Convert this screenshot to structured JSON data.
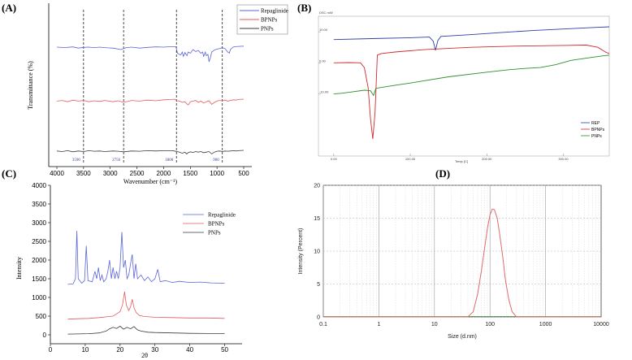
{
  "colors": {
    "blue": "#5b64d6",
    "red": "#e35a5a",
    "black": "#3a3a3a",
    "dsc_blue": "#2f3ea8",
    "dsc_red": "#d02a2a",
    "dsc_green": "#2f8f2f",
    "dls_red": "#e06a6a"
  },
  "chart_data": [
    {
      "type": "line",
      "panel_label": "(A)",
      "xlabel": "Wavenumber (cm⁻¹)",
      "ylabel": "Transmittance (%)",
      "xlim": [
        4000,
        500
      ],
      "x_ticks": [
        "4000",
        "3500",
        "3000",
        "2500",
        "2000",
        "1500",
        "1000",
        "500"
      ],
      "annotations": [
        "3590",
        "2750",
        "1800",
        "900"
      ],
      "annotation_x": [
        3500,
        2750,
        1760,
        900
      ],
      "legend": [
        "Repaglinide",
        "BPNPs",
        "PNPs"
      ],
      "series": [
        {
          "name": "Repaglinide",
          "color": "#5b64d6",
          "offset": 0.8,
          "x": [
            4000,
            3850,
            3700,
            3600,
            3500,
            3400,
            3300,
            3200,
            3050,
            2950,
            2800,
            2700,
            2600,
            2450,
            2300,
            2150,
            2000,
            1850,
            1770,
            1740,
            1700,
            1680,
            1650,
            1630,
            1600,
            1580,
            1560,
            1540,
            1500,
            1450,
            1400,
            1350,
            1300,
            1270,
            1250,
            1220,
            1200,
            1170,
            1150,
            1120,
            1100,
            1050,
            1000,
            950,
            900,
            850,
            800,
            770,
            750,
            700,
            650,
            600,
            500
          ],
          "y": [
            0.8,
            0.78,
            0.81,
            0.76,
            0.79,
            0.8,
            0.78,
            0.8,
            0.77,
            0.76,
            0.7,
            0.78,
            0.8,
            0.76,
            0.79,
            0.81,
            0.8,
            0.82,
            0.82,
            0.55,
            0.5,
            0.48,
            0.6,
            0.42,
            0.58,
            0.5,
            0.45,
            0.6,
            0.55,
            0.7,
            0.62,
            0.66,
            0.55,
            0.6,
            0.42,
            0.6,
            0.45,
            0.5,
            0.2,
            0.4,
            0.6,
            0.68,
            0.72,
            0.74,
            0.78,
            0.74,
            0.6,
            0.55,
            0.7,
            0.8,
            0.82,
            0.83,
            0.84
          ]
        },
        {
          "name": "BPNPs",
          "color": "#e35a5a",
          "offset": 0.0,
          "x": [
            4000,
            3900,
            3800,
            3700,
            3600,
            3500,
            3400,
            3300,
            3200,
            3100,
            2950,
            2850,
            2750,
            2600,
            2450,
            2300,
            2150,
            2000,
            1850,
            1800,
            1750,
            1700,
            1650,
            1600,
            1570,
            1540,
            1500,
            1450,
            1400,
            1350,
            1300,
            1250,
            1200,
            1150,
            1100,
            1050,
            1000,
            950,
            900,
            850,
            800,
            750,
            700,
            650,
            600,
            500
          ],
          "y": [
            0.44,
            0.46,
            0.42,
            0.47,
            0.44,
            0.46,
            0.42,
            0.45,
            0.43,
            0.46,
            0.42,
            0.45,
            0.4,
            0.46,
            0.44,
            0.47,
            0.45,
            0.48,
            0.49,
            0.5,
            0.45,
            0.44,
            0.4,
            0.42,
            0.36,
            0.32,
            0.42,
            0.44,
            0.46,
            0.4,
            0.44,
            0.38,
            0.42,
            0.45,
            0.34,
            0.4,
            0.44,
            0.46,
            0.45,
            0.47,
            0.44,
            0.46,
            0.48,
            0.47,
            0.49,
            0.5
          ]
        },
        {
          "name": "PNPs",
          "color": "#3a3a3a",
          "offset": 0.0,
          "x": [
            4000,
            3900,
            3800,
            3700,
            3600,
            3500,
            3400,
            3300,
            3200,
            3100,
            2950,
            2850,
            2750,
            2600,
            2450,
            2300,
            2150,
            2000,
            1850,
            1800,
            1750,
            1700,
            1650,
            1600,
            1570,
            1540,
            1500,
            1450,
            1400,
            1350,
            1300,
            1250,
            1200,
            1150,
            1100,
            1050,
            1000,
            950,
            900,
            850,
            800,
            750,
            700,
            650,
            600,
            500
          ],
          "y": [
            0.14,
            0.12,
            0.15,
            0.11,
            0.14,
            0.12,
            0.15,
            0.13,
            0.14,
            0.12,
            0.14,
            0.13,
            0.11,
            0.14,
            0.13,
            0.15,
            0.14,
            0.15,
            0.15,
            0.14,
            0.12,
            0.1,
            0.06,
            0.1,
            0.04,
            0.08,
            0.11,
            0.09,
            0.12,
            0.1,
            0.12,
            0.08,
            0.1,
            0.12,
            0.04,
            0.1,
            0.13,
            0.14,
            0.12,
            0.14,
            0.13,
            0.14,
            0.15,
            0.14,
            0.15,
            0.16
          ]
        }
      ]
    },
    {
      "type": "line",
      "panel_label": "(B)",
      "xlabel": "Temp [C]",
      "ylabel": "DSC mW",
      "y_ticks": [
        "10.00",
        "0.00",
        "-10.00"
      ],
      "x_ticks": [
        "0.00",
        "100.00",
        "200.00",
        "300.00"
      ],
      "xlim": [
        -20,
        360
      ],
      "ylim": [
        -30,
        15
      ],
      "legend": [
        "REP",
        "BPNPs",
        "PNPs"
      ],
      "series": [
        {
          "name": "REP",
          "color": "#2f3ea8",
          "x": [
            0,
            50,
            100,
            125,
            130,
            133,
            136,
            140,
            180,
            220,
            260,
            300,
            340,
            360
          ],
          "y": [
            7.5,
            7.8,
            8.1,
            8.3,
            7.0,
            4.0,
            7.2,
            8.5,
            9.1,
            9.8,
            10.4,
            10.9,
            11.4,
            11.6
          ]
        },
        {
          "name": "BPNPs",
          "color": "#d02a2a",
          "x": [
            0,
            20,
            35,
            40,
            45,
            48,
            51,
            54,
            57,
            62,
            80,
            120,
            180,
            240,
            300,
            330,
            345,
            355,
            360
          ],
          "y": [
            0.0,
            0.1,
            0.0,
            -1.5,
            -8.0,
            -18.0,
            -24.5,
            -16.0,
            2.5,
            3.0,
            3.5,
            4.3,
            5.0,
            5.4,
            5.6,
            5.7,
            5.0,
            3.5,
            3.0
          ]
        },
        {
          "name": "PNPs",
          "color": "#2f8f2f",
          "x": [
            0,
            10,
            20,
            40,
            48,
            52,
            55,
            60,
            80,
            100,
            150,
            200,
            230,
            250,
            270,
            290,
            310,
            330,
            350,
            360
          ],
          "y": [
            -10.0,
            -9.8,
            -9.5,
            -8.8,
            -9.0,
            -10.5,
            -8.2,
            -8.0,
            -7.2,
            -6.5,
            -4.5,
            -3.0,
            -2.2,
            -1.8,
            -1.5,
            -0.6,
            0.8,
            1.5,
            2.2,
            2.5
          ]
        }
      ]
    },
    {
      "type": "line",
      "panel_label": "(C)",
      "xlabel": "2θ",
      "ylabel": "Intensity",
      "xlim": [
        0,
        55
      ],
      "ylim": [
        0,
        4000
      ],
      "y_ticks": [
        "0",
        "500",
        "1000",
        "1500",
        "2000",
        "2500",
        "3000",
        "3500",
        "4000"
      ],
      "x_ticks": [
        "0",
        "10",
        "20",
        "30",
        "40",
        "50"
      ],
      "legend": [
        "Repaglinide",
        "BPNPs",
        "PNPs"
      ],
      "series": [
        {
          "name": "Repaglinide",
          "color": "#5b64d6",
          "x": [
            5,
            6.5,
            7.2,
            7.6,
            8.0,
            9.0,
            9.8,
            10.3,
            10.8,
            12,
            12.8,
            13.3,
            13.8,
            14.3,
            14.8,
            15.3,
            16,
            16.5,
            17,
            17.5,
            18,
            18.5,
            19,
            19.5,
            20,
            20.5,
            21,
            21.5,
            22,
            22.5,
            23,
            23.5,
            24,
            24.5,
            25,
            26,
            27,
            28,
            29,
            30,
            30.8,
            31.5,
            33,
            35,
            37,
            40,
            43,
            46,
            50
          ],
          "y": [
            1350,
            1360,
            1500,
            2780,
            1500,
            1380,
            1450,
            2380,
            1450,
            1420,
            1700,
            1500,
            1800,
            1450,
            1600,
            1420,
            1500,
            1700,
            2000,
            1500,
            1800,
            1500,
            1700,
            1500,
            1800,
            2750,
            1800,
            2000,
            1500,
            1600,
            1900,
            2150,
            1500,
            1900,
            1500,
            1600,
            1450,
            1550,
            1420,
            1500,
            1750,
            1420,
            1450,
            1400,
            1430,
            1400,
            1410,
            1390,
            1380
          ]
        },
        {
          "name": "BPNPs",
          "color": "#e35a5a",
          "x": [
            5,
            8,
            11,
            14,
            16,
            18,
            19,
            20,
            20.7,
            21.3,
            21.8,
            22.5,
            23,
            23.5,
            24,
            24.6,
            25.5,
            27,
            30,
            35,
            40,
            45,
            50
          ],
          "y": [
            420,
            430,
            440,
            460,
            480,
            500,
            560,
            620,
            800,
            1150,
            800,
            650,
            750,
            950,
            720,
            600,
            520,
            490,
            470,
            460,
            450,
            450,
            440
          ]
        },
        {
          "name": "PNPs",
          "color": "#3a3a3a",
          "x": [
            5,
            8,
            11,
            14,
            16,
            17,
            18,
            19,
            20,
            21,
            22,
            23,
            24,
            25,
            26,
            28,
            30,
            35,
            40,
            45,
            50
          ],
          "y": [
            20,
            25,
            30,
            50,
            100,
            160,
            200,
            170,
            230,
            150,
            200,
            160,
            220,
            130,
            100,
            70,
            60,
            50,
            40,
            35,
            30
          ]
        }
      ]
    },
    {
      "type": "line",
      "panel_label": "(D)",
      "xlabel": "Size (d.nm)",
      "ylabel": "Intensity (Percent)",
      "xscale": "log",
      "xlim": [
        0.1,
        10000
      ],
      "ylim": [
        0,
        20
      ],
      "x_ticks": [
        "0.1",
        "1",
        "10",
        "100",
        "1000",
        "10000"
      ],
      "y_ticks": [
        "0",
        "5",
        "10",
        "15",
        "20"
      ],
      "grid": true,
      "series": [
        {
          "name": "",
          "color": "#e06a6a",
          "x": [
            0.1,
            40,
            50,
            60,
            70,
            80,
            90,
            100,
            110,
            120,
            135,
            150,
            170,
            190,
            220,
            250,
            300,
            10000
          ],
          "y": [
            0,
            0,
            0.8,
            3.5,
            7.0,
            10.5,
            13.5,
            15.5,
            16.4,
            16.3,
            15.0,
            12.5,
            9.0,
            5.5,
            2.5,
            0.8,
            0,
            0
          ]
        }
      ]
    }
  ]
}
